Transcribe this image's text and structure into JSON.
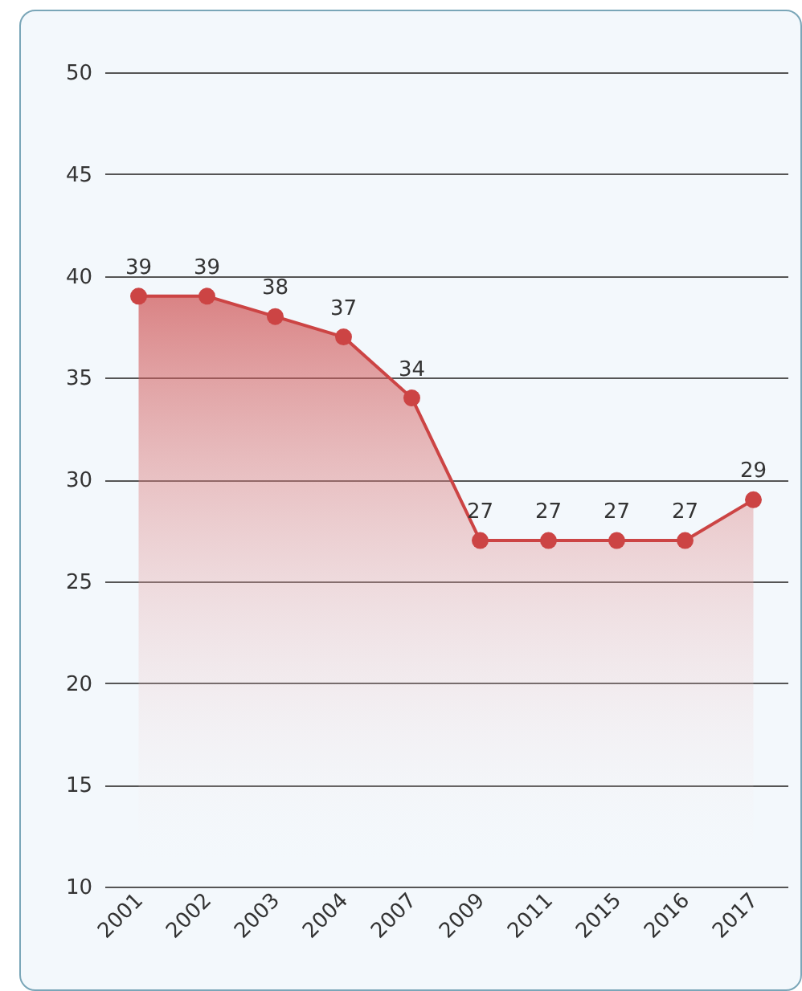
{
  "chart_data": {
    "type": "area",
    "categories": [
      "2001",
      "2002",
      "2003",
      "2004",
      "2007",
      "2009",
      "2011",
      "2015",
      "2016",
      "2017"
    ],
    "values": [
      39,
      39,
      38,
      37,
      34,
      27,
      27,
      27,
      27,
      29
    ],
    "color": "#cc4444",
    "ylim": [
      10,
      50
    ],
    "yticks": [
      10,
      15,
      20,
      25,
      30,
      35,
      40,
      45,
      50
    ],
    "grid": "y",
    "marker": "circle",
    "data_labels": true
  }
}
